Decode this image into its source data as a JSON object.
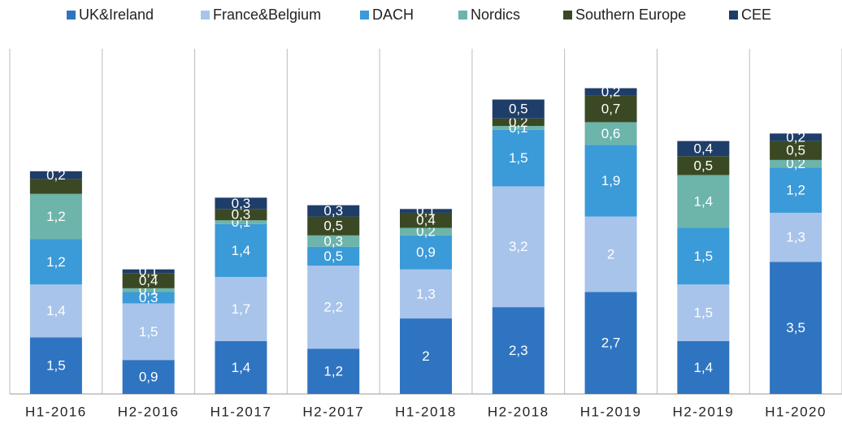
{
  "chart_data": {
    "type": "stacked-bar",
    "categories": [
      "H1-2016",
      "H2-2016",
      "H1-2017",
      "H2-2017",
      "H1-2018",
      "H2-2018",
      "H1-2019",
      "H2-2019",
      "H1-2020"
    ],
    "series": [
      {
        "name": "UK&Ireland",
        "color": "#2f74c1",
        "values": [
          1.5,
          0.9,
          1.4,
          1.2,
          2,
          2.3,
          2.7,
          1.4,
          3.5
        ],
        "value_labels": [
          "1,5",
          "0,9",
          "1,4",
          "1,2",
          "2",
          "2,3",
          "2,7",
          "1,4",
          "3,5"
        ]
      },
      {
        "name": "France&Belgium",
        "color": "#a8c4ea",
        "values": [
          1.4,
          1.5,
          1.7,
          2.2,
          1.3,
          3.2,
          2,
          1.5,
          1.3
        ],
        "value_labels": [
          "1,4",
          "1,5",
          "1,7",
          "2,2",
          "1,3",
          "3,2",
          "2",
          "1,5",
          "1,3"
        ]
      },
      {
        "name": "DACH",
        "color": "#3b9ad8",
        "values": [
          1.2,
          0.3,
          1.4,
          0.5,
          0.9,
          1.5,
          1.9,
          1.5,
          1.2
        ],
        "value_labels": [
          "1,2",
          "0,3",
          "1,4",
          "0,5",
          "0,9",
          "1,5",
          "1,9",
          "1,5",
          "1,2"
        ]
      },
      {
        "name": "Nordics",
        "color": "#6db4ab",
        "values": [
          1.2,
          0.1,
          0.1,
          0.3,
          0.2,
          0.1,
          0.6,
          1.4,
          0.2
        ],
        "value_labels": [
          "1,2",
          "0,1",
          "0,1",
          "0,3",
          "0,2",
          "0,1",
          "0,6",
          "1,4",
          "0,2"
        ]
      },
      {
        "name": "Southern Europe",
        "color": "#3a4923",
        "values": [
          0.4,
          0.4,
          0.3,
          0.5,
          0.4,
          0.2,
          0.7,
          0.5,
          0.5
        ],
        "value_labels": [
          null,
          "0,4",
          "0,3",
          "0,5",
          "0,4",
          "0,2",
          "0,7",
          "0,5",
          "0,5"
        ]
      },
      {
        "name": "CEE",
        "color": "#1f3d69",
        "values": [
          0.2,
          0.1,
          0.3,
          0.3,
          0.1,
          0.5,
          0.2,
          0.4,
          0.2
        ],
        "value_labels": [
          "0,2",
          "0,1",
          "0,3",
          "0,3",
          "0,1",
          "0,5",
          "0,2",
          "0,4",
          "0,2"
        ]
      }
    ],
    "ylim": [
      0,
      8.5
    ],
    "legend": "top"
  }
}
